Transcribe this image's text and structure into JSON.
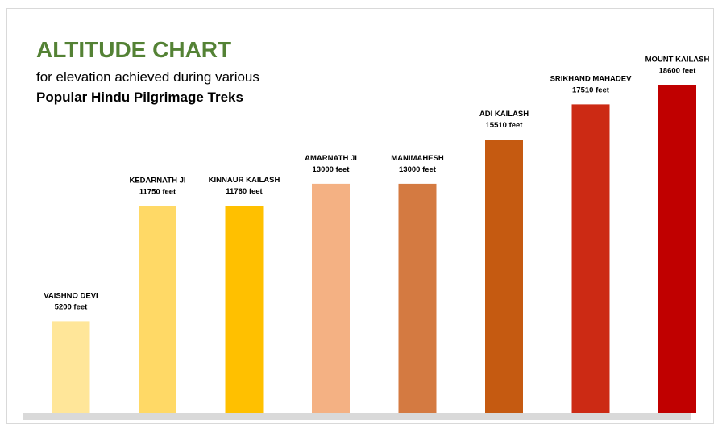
{
  "header": {
    "title": "ALTITUDE CHART",
    "subtitle_line1": "for elevation achieved during various",
    "subtitle_line2": "Popular Hindu Pilgrimage Treks"
  },
  "chart_data": {
    "type": "bar",
    "title": "ALTITUDE CHART",
    "subtitle": "for elevation achieved during various Popular Hindu Pilgrimage Treks",
    "xlabel": "",
    "ylabel": "",
    "unit": "feet",
    "ylim": [
      0,
      20000
    ],
    "grid": false,
    "legend": "none",
    "categories": [
      "VAISHNO DEVI",
      "KEDARNATH JI",
      "KINNAUR KAILASH",
      "AMARNATH JI",
      "MANIMAHESH",
      "ADI KAILASH",
      "SRIKHAND MAHADEV",
      "MOUNT KAILASH"
    ],
    "values": [
      5200,
      11750,
      11760,
      13000,
      13000,
      15510,
      17510,
      18600
    ],
    "value_labels": [
      "5200 feet",
      "11750 feet",
      "11760 feet",
      "13000 feet",
      "13000 feet",
      "15510 feet",
      "17510 feet",
      "18600 feet"
    ],
    "colors": [
      "#ffe699",
      "#ffd966",
      "#ffc000",
      "#f4b183",
      "#d47a41",
      "#c55a11",
      "#cc2a14",
      "#c00000"
    ],
    "baseline_color": "#d9d9d9"
  }
}
